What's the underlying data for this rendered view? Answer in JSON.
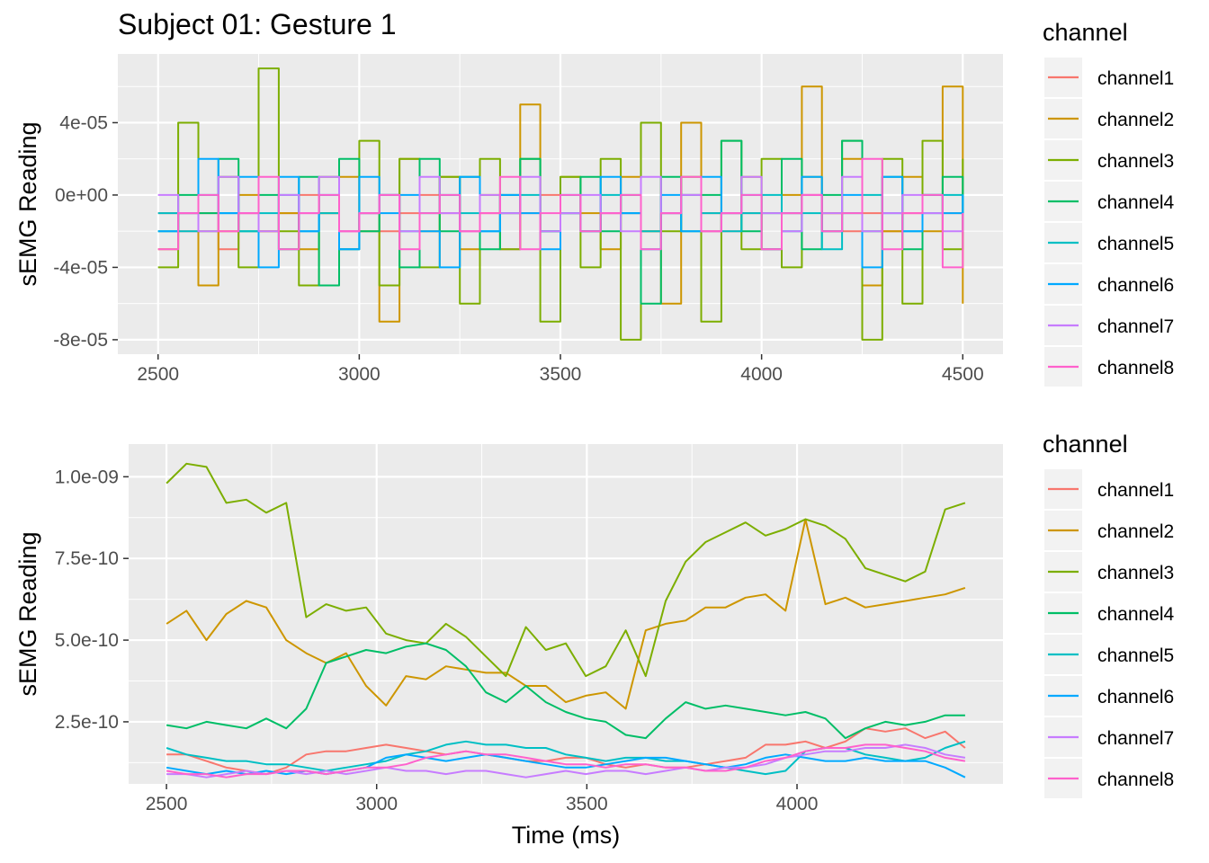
{
  "chart_data": [
    {
      "type": "line",
      "title": "Subject 01: Gesture 1",
      "xlabel": "",
      "ylabel": "sEMG Reading",
      "xlim": [
        2400,
        4600
      ],
      "ylim": [
        -8.8e-05,
        7.8e-05
      ],
      "xticks": [
        2500,
        3000,
        3500,
        4000,
        4500
      ],
      "xtick_labels": [
        "2500",
        "3000",
        "3500",
        "4000",
        "4500"
      ],
      "yticks": [
        -8e-05,
        -4e-05,
        0,
        4e-05
      ],
      "ytick_labels": [
        "-8e-05",
        "-4e-05",
        "0e+00",
        "4e-05"
      ],
      "legend": {
        "title": "channel",
        "position": "right"
      },
      "grid": true,
      "x_range_of_data": [
        2500,
        4500
      ],
      "series": [
        {
          "name": "channel1",
          "color": "#F8766D",
          "values": [
            -1e-05,
            -2e-05,
            -1e-05,
            -3e-05,
            -1e-05,
            -2e-05,
            -1e-05,
            0,
            -1e-05,
            -2e-05,
            -1e-05,
            -2e-05,
            -1e-05,
            0,
            -1e-05,
            -2e-05,
            -1e-05,
            -3e-05,
            -1e-05,
            0,
            -1e-05,
            -2e-05,
            -1e-05,
            -1e-05,
            -2e-05,
            -1e-05,
            0,
            -1e-05,
            -2e-05,
            -1e-05,
            -3e-05,
            -1e-05,
            0,
            -1e-05,
            -2e-05,
            -1e-05,
            -2e-05,
            -1e-05,
            0,
            -1e-05,
            -2e-05
          ]
        },
        {
          "name": "channel2",
          "color": "#CD9600",
          "values": [
            -3e-05,
            -1e-05,
            -5e-05,
            -2e-05,
            0,
            -2e-05,
            -1e-05,
            -3e-05,
            -1e-05,
            1e-05,
            -2e-05,
            -7e-05,
            2e-05,
            -2e-05,
            1e-05,
            -3e-05,
            0,
            -1e-05,
            5e-05,
            -2e-05,
            1e-05,
            -1e-05,
            -3e-05,
            1e-05,
            -2e-05,
            -6e-05,
            4e-05,
            -2e-05,
            -1e-05,
            1e-05,
            -3e-05,
            0,
            6e-05,
            -1e-05,
            2e-05,
            -5e-05,
            -2e-05,
            1e-05,
            -2e-05,
            6e-05,
            -6e-05
          ]
        },
        {
          "name": "channel3",
          "color": "#7CAE00",
          "values": [
            -4e-05,
            4e-05,
            -2e-05,
            1e-05,
            -4e-05,
            7e-05,
            -2e-05,
            -5e-05,
            1e-05,
            -3e-05,
            3e-05,
            -5e-05,
            2e-05,
            -4e-05,
            1e-05,
            -6e-05,
            2e-05,
            -3e-05,
            2e-05,
            -7e-05,
            1e-05,
            -4e-05,
            2e-05,
            -8e-05,
            4e-05,
            -2e-05,
            1e-05,
            -7e-05,
            3e-05,
            -3e-05,
            2e-05,
            -4e-05,
            1e-05,
            -2e-05,
            3e-05,
            -8e-05,
            2e-05,
            -6e-05,
            3e-05,
            -3e-05,
            2e-05
          ]
        },
        {
          "name": "channel4",
          "color": "#00BE67",
          "values": [
            -2e-05,
            0,
            -1e-05,
            2e-05,
            -2e-05,
            0,
            -3e-05,
            1e-05,
            -5e-05,
            2e-05,
            -2e-05,
            0,
            -4e-05,
            2e-05,
            -2e-05,
            1e-05,
            -3e-05,
            0,
            2e-05,
            -2e-05,
            -1e-05,
            1e-05,
            -2e-05,
            0,
            -6e-05,
            1e-05,
            -2e-05,
            0,
            3e-05,
            -2e-05,
            -1e-05,
            2e-05,
            -3e-05,
            0,
            3e-05,
            -2e-05,
            1e-05,
            -3e-05,
            0,
            1e-05,
            -2e-05
          ]
        },
        {
          "name": "channel5",
          "color": "#00BFC4",
          "values": [
            -1e-05,
            -2e-05,
            0,
            -1e-05,
            -2e-05,
            -1e-05,
            0,
            -2e-05,
            -1e-05,
            -3e-05,
            -1e-05,
            0,
            -2e-05,
            -1e-05,
            0,
            -1e-05,
            -2e-05,
            -1e-05,
            0,
            -2e-05,
            -1e-05,
            -2e-05,
            0,
            -1e-05,
            -2e-05,
            -1e-05,
            0,
            -1e-05,
            -2e-05,
            -1e-05,
            0,
            -2e-05,
            -1e-05,
            -3e-05,
            -1e-05,
            0,
            -1e-05,
            -2e-05,
            -1e-05,
            0,
            -1e-05
          ]
        },
        {
          "name": "channel6",
          "color": "#00A9FF",
          "values": [
            -2e-05,
            -1e-05,
            2e-05,
            -1e-05,
            1e-05,
            -4e-05,
            1e-05,
            -2e-05,
            0,
            -3e-05,
            1e-05,
            -1e-05,
            0,
            -2e-05,
            -4e-05,
            1e-05,
            -2e-05,
            0,
            -1e-05,
            -3e-05,
            0,
            -2e-05,
            1e-05,
            -1e-05,
            -3e-05,
            0,
            -2e-05,
            1e-05,
            -1e-05,
            0,
            -3e-05,
            -1e-05,
            1e-05,
            -2e-05,
            0,
            -4e-05,
            1e-05,
            -2e-05,
            0,
            -1e-05,
            0
          ]
        },
        {
          "name": "channel7",
          "color": "#C77CFF",
          "values": [
            0,
            -1e-05,
            -2e-05,
            1e-05,
            -1e-05,
            -2e-05,
            0,
            -1e-05,
            1e-05,
            -2e-05,
            -1e-05,
            0,
            -2e-05,
            1e-05,
            -1e-05,
            -2e-05,
            0,
            -1e-05,
            1e-05,
            -2e-05,
            -1e-05,
            0,
            -1e-05,
            -2e-05,
            1e-05,
            -1e-05,
            0,
            -2e-05,
            -1e-05,
            1e-05,
            -1e-05,
            -2e-05,
            0,
            -1e-05,
            1e-05,
            -2e-05,
            -1e-05,
            0,
            -1e-05,
            -2e-05,
            -1e-05
          ]
        },
        {
          "name": "channel8",
          "color": "#FF61CC",
          "values": [
            -3e-05,
            -1e-05,
            0,
            -2e-05,
            -1e-05,
            1e-05,
            -3e-05,
            -1e-05,
            0,
            -2e-05,
            -1e-05,
            0,
            -3e-05,
            -1e-05,
            0,
            -2e-05,
            -1e-05,
            1e-05,
            -3e-05,
            -1e-05,
            0,
            -2e-05,
            -1e-05,
            0,
            -3e-05,
            -1e-05,
            1e-05,
            -2e-05,
            -1e-05,
            0,
            -3e-05,
            -1e-05,
            0,
            -2e-05,
            -1e-05,
            2e-05,
            -3e-05,
            -1e-05,
            0,
            -4e-05,
            -1e-05
          ]
        }
      ]
    },
    {
      "type": "line",
      "title": "",
      "xlabel": "Time (ms)",
      "ylabel": "sEMG Reading",
      "xlim": [
        2410,
        4490
      ],
      "ylim": [
        6e-11,
        1.1e-09
      ],
      "xticks": [
        2500,
        3000,
        3500,
        4000
      ],
      "xtick_labels": [
        "2500",
        "3000",
        "3500",
        "4000"
      ],
      "yticks": [
        2.5e-10,
        5e-10,
        7.5e-10,
        1e-09
      ],
      "ytick_labels": [
        "2.5e-10",
        "5.0e-10",
        "7.5e-10",
        "1.0e-09"
      ],
      "legend": {
        "title": "channel",
        "position": "right"
      },
      "grid": true,
      "x_range_of_data": [
        2500,
        4400
      ],
      "series": [
        {
          "name": "channel1",
          "color": "#F8766D",
          "values": [
            1.5e-10,
            1.5e-10,
            1.3e-10,
            1.1e-10,
            1e-10,
            9e-11,
            1.1e-10,
            1.5e-10,
            1.6e-10,
            1.6e-10,
            1.7e-10,
            1.8e-10,
            1.7e-10,
            1.6e-10,
            1.5e-10,
            1.6e-10,
            1.5e-10,
            1.4e-10,
            1.3e-10,
            1.3e-10,
            1.4e-10,
            1.4e-10,
            1.2e-10,
            1.1e-10,
            1.2e-10,
            1.1e-10,
            1.1e-10,
            1.2e-10,
            1.3e-10,
            1.4e-10,
            1.8e-10,
            1.8e-10,
            1.9e-10,
            1.7e-10,
            1.9e-10,
            2.3e-10,
            2.2e-10,
            2.3e-10,
            2e-10,
            2.2e-10,
            1.7e-10
          ]
        },
        {
          "name": "channel2",
          "color": "#CD9600",
          "values": [
            5.5e-10,
            5.9e-10,
            5e-10,
            5.8e-10,
            6.2e-10,
            6e-10,
            5e-10,
            4.6e-10,
            4.3e-10,
            4.6e-10,
            3.6e-10,
            3e-10,
            3.9e-10,
            3.8e-10,
            4.2e-10,
            4.1e-10,
            4e-10,
            4e-10,
            3.6e-10,
            3.6e-10,
            3.1e-10,
            3.3e-10,
            3.4e-10,
            2.9e-10,
            5.3e-10,
            5.5e-10,
            5.6e-10,
            6e-10,
            6e-10,
            6.3e-10,
            6.4e-10,
            5.9e-10,
            8.7e-10,
            6.1e-10,
            6.3e-10,
            6e-10,
            6.1e-10,
            6.2e-10,
            6.3e-10,
            6.4e-10,
            6.6e-10
          ]
        },
        {
          "name": "channel3",
          "color": "#7CAE00",
          "values": [
            9.8e-10,
            1.04e-09,
            1.03e-09,
            9.2e-10,
            9.3e-10,
            8.9e-10,
            9.2e-10,
            5.7e-10,
            6.1e-10,
            5.9e-10,
            6e-10,
            5.2e-10,
            5e-10,
            4.9e-10,
            5.5e-10,
            5.1e-10,
            4.5e-10,
            3.9e-10,
            5.4e-10,
            4.7e-10,
            4.9e-10,
            3.9e-10,
            4.2e-10,
            5.3e-10,
            3.9e-10,
            6.2e-10,
            7.4e-10,
            8e-10,
            8.3e-10,
            8.6e-10,
            8.2e-10,
            8.4e-10,
            8.7e-10,
            8.5e-10,
            8.1e-10,
            7.2e-10,
            7e-10,
            6.8e-10,
            7.1e-10,
            9e-10,
            9.2e-10
          ]
        },
        {
          "name": "channel4",
          "color": "#00BE67",
          "values": [
            2.4e-10,
            2.3e-10,
            2.5e-10,
            2.4e-10,
            2.3e-10,
            2.6e-10,
            2.3e-10,
            2.9e-10,
            4.3e-10,
            4.5e-10,
            4.7e-10,
            4.6e-10,
            4.8e-10,
            4.9e-10,
            4.7e-10,
            4.2e-10,
            3.4e-10,
            3.1e-10,
            3.6e-10,
            3.1e-10,
            2.8e-10,
            2.6e-10,
            2.5e-10,
            2.1e-10,
            2e-10,
            2.6e-10,
            3.1e-10,
            2.9e-10,
            3e-10,
            2.9e-10,
            2.8e-10,
            2.7e-10,
            2.8e-10,
            2.6e-10,
            2e-10,
            2.3e-10,
            2.5e-10,
            2.4e-10,
            2.5e-10,
            2.7e-10,
            2.7e-10
          ]
        },
        {
          "name": "channel5",
          "color": "#00BFC4",
          "values": [
            1.7e-10,
            1.5e-10,
            1.4e-10,
            1.3e-10,
            1.3e-10,
            1.2e-10,
            1.2e-10,
            1.1e-10,
            1e-10,
            1.1e-10,
            1.2e-10,
            1.3e-10,
            1.5e-10,
            1.6e-10,
            1.8e-10,
            1.9e-10,
            1.8e-10,
            1.8e-10,
            1.7e-10,
            1.7e-10,
            1.5e-10,
            1.4e-10,
            1.3e-10,
            1.4e-10,
            1.4e-10,
            1.3e-10,
            1.3e-10,
            1.2e-10,
            1.1e-10,
            1e-10,
            9e-11,
            1e-10,
            1.6e-10,
            1.7e-10,
            1.7e-10,
            1.5e-10,
            1.4e-10,
            1.3e-10,
            1.4e-10,
            1.7e-10,
            1.9e-10
          ]
        },
        {
          "name": "channel6",
          "color": "#00A9FF",
          "values": [
            1.1e-10,
            1e-10,
            9e-11,
            1e-10,
            9e-11,
            1e-10,
            9e-11,
            1e-10,
            9e-11,
            1e-10,
            1.1e-10,
            1.4e-10,
            1.5e-10,
            1.4e-10,
            1.3e-10,
            1.4e-10,
            1.5e-10,
            1.4e-10,
            1.3e-10,
            1.2e-10,
            1.1e-10,
            1.1e-10,
            1.2e-10,
            1.3e-10,
            1.4e-10,
            1.4e-10,
            1.3e-10,
            1.2e-10,
            1.1e-10,
            1.2e-10,
            1.4e-10,
            1.5e-10,
            1.4e-10,
            1.3e-10,
            1.3e-10,
            1.4e-10,
            1.3e-10,
            1.3e-10,
            1.3e-10,
            1.1e-10,
            8e-11
          ]
        },
        {
          "name": "channel7",
          "color": "#C77CFF",
          "values": [
            9e-11,
            9e-11,
            8e-11,
            9e-11,
            1e-10,
            9e-11,
            1e-10,
            9e-11,
            1e-10,
            9e-11,
            1e-10,
            1.1e-10,
            1e-10,
            1e-10,
            9e-11,
            1e-10,
            1e-10,
            9e-11,
            8e-11,
            9e-11,
            1e-10,
            9e-11,
            1e-10,
            1e-10,
            9e-11,
            1e-10,
            1.1e-10,
            1e-10,
            1.1e-10,
            1.1e-10,
            1.2e-10,
            1.4e-10,
            1.5e-10,
            1.6e-10,
            1.6e-10,
            1.7e-10,
            1.7e-10,
            1.8e-10,
            1.7e-10,
            1.5e-10,
            1.4e-10
          ]
        },
        {
          "name": "channel8",
          "color": "#FF61CC",
          "values": [
            1e-10,
            9e-11,
            9e-11,
            8e-11,
            9e-11,
            9e-11,
            1e-10,
            1e-10,
            9e-11,
            1e-10,
            1.1e-10,
            1.1e-10,
            1.2e-10,
            1.4e-10,
            1.5e-10,
            1.6e-10,
            1.5e-10,
            1.5e-10,
            1.4e-10,
            1.3e-10,
            1.2e-10,
            1.2e-10,
            1.1e-10,
            1.2e-10,
            1.2e-10,
            1.1e-10,
            1.1e-10,
            1e-10,
            1e-10,
            1.1e-10,
            1.3e-10,
            1.4e-10,
            1.6e-10,
            1.7e-10,
            1.7e-10,
            1.8e-10,
            1.8e-10,
            1.7e-10,
            1.6e-10,
            1.4e-10,
            1.3e-10
          ]
        }
      ]
    }
  ]
}
